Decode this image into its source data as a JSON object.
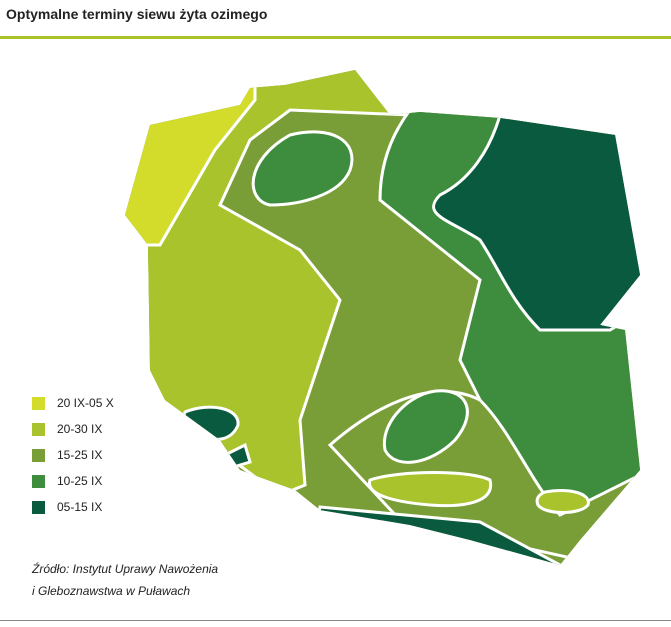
{
  "title": "Optymalne terminy siewu żyta ozimego",
  "legend": {
    "items": [
      {
        "label": "20 IX-05 X",
        "color": "#d3db2b"
      },
      {
        "label": "20-30 IX",
        "color": "#a8c32b"
      },
      {
        "label": "15-25 IX",
        "color": "#799e37"
      },
      {
        "label": "10-25 IX",
        "color": "#3e8d3e"
      },
      {
        "label": "05-15 IX",
        "color": "#0a5a40"
      }
    ]
  },
  "source": [
    "Źródło: Instytut Uprawy Nawożenia",
    "i Gleboznawstwa w Puławach"
  ]
}
